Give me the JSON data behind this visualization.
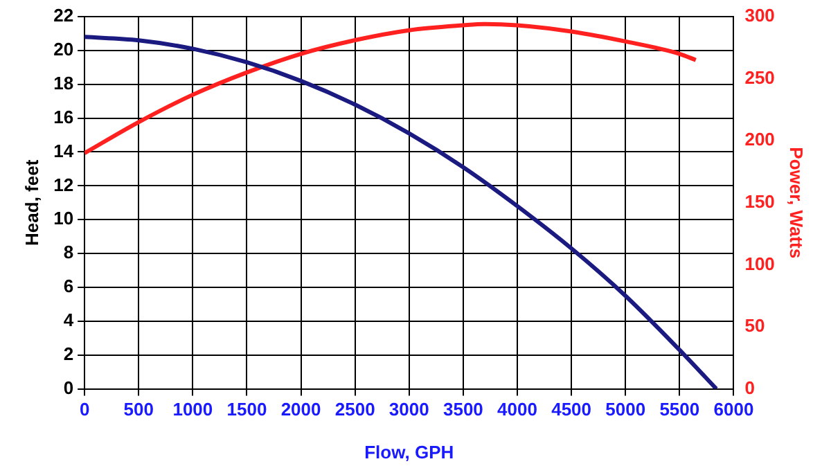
{
  "chart_data": {
    "type": "line",
    "xlabel": "Flow, GPH",
    "ylabel": "Head, feet",
    "y2label": "Power, Watts",
    "xlim": [
      0,
      6000
    ],
    "xticks": [
      0,
      500,
      1000,
      1500,
      2000,
      2500,
      3000,
      3500,
      4000,
      4500,
      5000,
      5500,
      6000
    ],
    "ylim": [
      0,
      22
    ],
    "yticks": [
      0,
      2,
      4,
      6,
      8,
      10,
      12,
      14,
      16,
      18,
      20,
      22
    ],
    "y2lim": [
      0,
      300
    ],
    "y2ticks": [
      0,
      50,
      100,
      150,
      200,
      250,
      300
    ],
    "grid": true,
    "legend": false,
    "marker": "none",
    "line_style": "solid",
    "series": [
      {
        "color": "#1a1a80",
        "x": [
          0,
          500,
          1000,
          1500,
          2000,
          2500,
          3000,
          3500,
          4000,
          4500,
          5000,
          5500,
          5840
        ],
        "values": [
          20.8,
          20.6,
          20.1,
          19.3,
          18.2,
          16.8,
          15.1,
          13.1,
          10.8,
          8.3,
          5.5,
          2.3,
          0
        ]
      },
      {
        "color": "#ff2020",
        "axis": "y2",
        "x": [
          0,
          500,
          1000,
          1500,
          2000,
          2500,
          3000,
          3500,
          3700,
          4000,
          4500,
          5000,
          5500,
          5650
        ],
        "values": [
          190,
          215,
          237,
          255,
          270,
          281,
          289,
          293,
          294,
          293,
          288,
          280,
          270,
          265
        ]
      }
    ]
  }
}
